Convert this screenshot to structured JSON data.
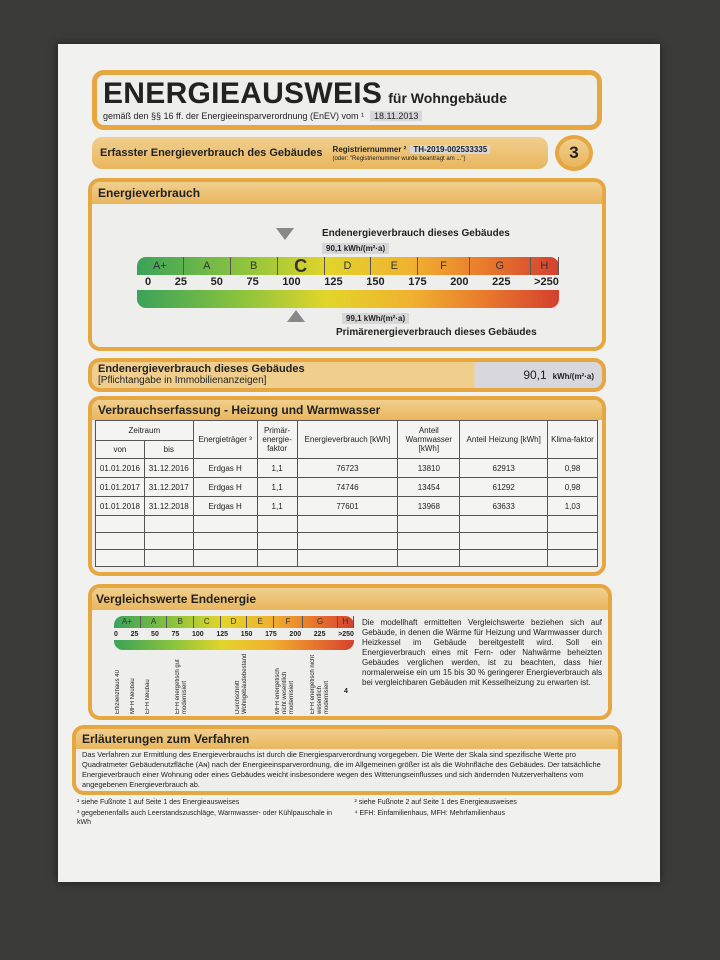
{
  "header": {
    "title": "ENERGIEAUSWEIS",
    "subtitle": "für Wohngebäude",
    "legal": "gemäß den §§ 16 ff. der Energieeinsparverordnung (EnEV) vom ¹",
    "date": "18.11.2013"
  },
  "section": {
    "title": "Erfasster Energieverbrauch des Gebäudes",
    "reg_label": "Registriernummer ²",
    "reg_value": "TH-2019-002533335",
    "reg_note": "(oder: \"Registriernummer wurde beantragt am ...\")",
    "page": "3"
  },
  "energieverbrauch": {
    "title": "Energieverbrauch",
    "end_label": "Endenergieverbrauch dieses Gebäudes",
    "end_value": "90,1 kWh/(m²·a)",
    "prim_label": "Primärenergieverbrauch dieses Gebäudes",
    "prim_value": "99,1 kWh/(m²·a)",
    "classes": [
      "A+",
      "A",
      "B",
      "C",
      "D",
      "E",
      "F",
      "G",
      "H"
    ],
    "ticks": [
      "0",
      "25",
      "50",
      "75",
      "100",
      "125",
      "150",
      "175",
      "200",
      "225",
      ">250"
    ],
    "current_class": "C",
    "end_value_num": 90.1,
    "prim_value_num": 99.1
  },
  "pflicht": {
    "line1": "Endenergieverbrauch dieses Gebäudes",
    "line2": "[Pflichtangabe in Immobilienanzeigen]",
    "value": "90,1",
    "unit": "kWh/(m²·a)"
  },
  "verbrauch": {
    "title": "Verbrauchserfassung - Heizung und Warmwasser",
    "headers": {
      "zeitraum": "Zeitraum",
      "von": "von",
      "bis": "bis",
      "traeger": "Energieträger ³",
      "pef": "Primär-energie-faktor",
      "ev": "Energieverbrauch [kWh]",
      "ww": "Anteil Warmwasser [kWh]",
      "hz": "Anteil Heizung [kWh]",
      "klima": "Klima-faktor"
    },
    "rows": [
      [
        "01.01.2016",
        "31.12.2016",
        "Erdgas H",
        "1,1",
        "76723",
        "13810",
        "62913",
        "0,98"
      ],
      [
        "01.01.2017",
        "31.12.2017",
        "Erdgas H",
        "1,1",
        "74746",
        "13454",
        "61292",
        "0,98"
      ],
      [
        "01.01.2018",
        "31.12.2018",
        "Erdgas H",
        "1,1",
        "77601",
        "13968",
        "63633",
        "1,03"
      ]
    ]
  },
  "vergleich": {
    "title": "Vergleichswerte Endenergie",
    "classes": [
      "A+",
      "A",
      "B",
      "C",
      "D",
      "E",
      "F",
      "G",
      "H"
    ],
    "ticks": [
      "0",
      "25",
      "50",
      "75",
      "100",
      "125",
      "150",
      "175",
      "200",
      "225",
      ">250"
    ],
    "labels": [
      "Effizienzhaus 40",
      "MFH Neubau",
      "EFH Neubau",
      "EFH energetisch gut modernisiert",
      "Durchschnitt Wohngebäudebestand",
      "MFH energetisch nicht wesentlich modernisiert",
      "EFH energetisch nicht wesentlich modernisiert"
    ],
    "footnote_mark": "4",
    "text": "Die modellhaft ermittelten Vergleichswerte beziehen sich auf Gebäude, in denen die Wärme für Heizung und Warmwasser durch Heizkessel im Gebäude bereitgestellt wird. Soll ein Energieverbrauch eines mit Fern- oder Nahwärme beheizten Gebäudes verglichen werden, ist zu beachten, dass hier normalerweise ein um 15 bis 30 % geringerer Energieverbrauch als bei vergleichbaren Gebäuden mit Kesselheizung zu erwarten ist."
  },
  "erlaeuterung": {
    "title": "Erläuterungen zum Verfahren",
    "text": "Das Verfahren zur Ermittlung des Energieverbrauchs ist durch die Energiesparverordnung vorgegeben. Die Werte der Skala sind spezifische Werte pro Quadratmeter Gebäudenutzfläche (Aɴ) nach der Energieeinsparverordnung, die im Allgemeinen größer ist als die Wohnfläche des Gebäudes. Der tatsächliche Energieverbrauch einer Wohnung oder eines Gebäudes weicht insbesondere wegen des Witterungseinflusses und sich ändernden Nutzerverhaltens vom angegebenen Energieverbrauch ab."
  },
  "footnotes": {
    "f1": "¹ siehe Fußnote 1 auf Seite 1 des Energieausweises",
    "f2": "² siehe Fußnote 2 auf Seite 1 des Energieausweises",
    "f3": "³ gegebenenfalls auch Leerstandszuschläge, Warmwasser- oder Kühlpauschale in kWh",
    "f4": "⁴ EFH: Einfamilienhaus, MFH: Mehrfamilienhaus"
  }
}
